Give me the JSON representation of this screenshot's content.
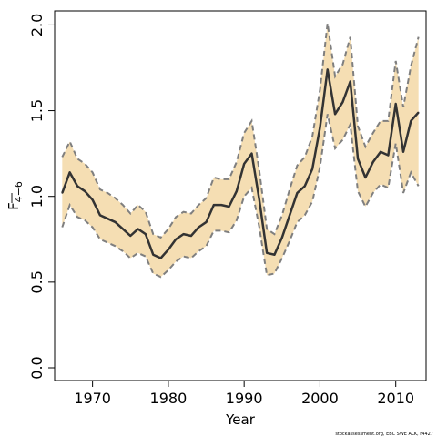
{
  "chart_data": {
    "type": "line",
    "xlabel": "Year",
    "ylabel": "F",
    "ylabel_subscript": "4−6",
    "xlim": [
      1965,
      2014
    ],
    "ylim": [
      0,
      2.05
    ],
    "x_ticks": [
      1970,
      1980,
      1990,
      2000,
      2010
    ],
    "x_tick_labels": [
      "1970",
      "1980",
      "1990",
      "2000",
      "2010"
    ],
    "y_ticks": [
      0,
      0.5,
      1,
      1.5,
      2
    ],
    "y_tick_labels": [
      "0.0",
      "0.5",
      "1.0",
      "1.5",
      "2.0"
    ],
    "grid": false,
    "colors": {
      "band_fill": "#f5deb3",
      "band_edge": "#7f7f7f",
      "line": "#333333"
    },
    "x": [
      1966,
      1967,
      1968,
      1969,
      1970,
      1971,
      1972,
      1973,
      1974,
      1975,
      1976,
      1977,
      1978,
      1979,
      1980,
      1981,
      1982,
      1983,
      1984,
      1985,
      1986,
      1987,
      1988,
      1989,
      1990,
      1991,
      1992,
      1993,
      1994,
      1995,
      1996,
      1997,
      1998,
      1999,
      2000,
      2001,
      2002,
      2003,
      2004,
      2005,
      2006,
      2007,
      2008,
      2009,
      2010,
      2011,
      2012,
      2013
    ],
    "series": [
      {
        "values": [
          1.02,
          1.14,
          1.06,
          1.03,
          0.98,
          0.89,
          0.87,
          0.85,
          0.81,
          0.77,
          0.81,
          0.78,
          0.66,
          0.64,
          0.69,
          0.75,
          0.78,
          0.77,
          0.82,
          0.85,
          0.95,
          0.95,
          0.94,
          1.03,
          1.19,
          1.25,
          0.98,
          0.67,
          0.66,
          0.76,
          0.89,
          1.02,
          1.06,
          1.16,
          1.4,
          1.74,
          1.48,
          1.55,
          1.67,
          1.22,
          1.11,
          1.2,
          1.26,
          1.24,
          1.54,
          1.26,
          1.44,
          1.49
        ],
        "lower": [
          0.82,
          0.95,
          0.88,
          0.86,
          0.82,
          0.75,
          0.73,
          0.71,
          0.68,
          0.64,
          0.67,
          0.65,
          0.55,
          0.53,
          0.57,
          0.62,
          0.65,
          0.64,
          0.68,
          0.71,
          0.8,
          0.8,
          0.79,
          0.86,
          1.0,
          1.05,
          0.82,
          0.54,
          0.55,
          0.64,
          0.74,
          0.85,
          0.89,
          0.97,
          1.17,
          1.48,
          1.28,
          1.33,
          1.42,
          1.03,
          0.94,
          1.02,
          1.07,
          1.05,
          1.31,
          1.02,
          1.14,
          1.06
        ],
        "upper": [
          1.23,
          1.32,
          1.22,
          1.19,
          1.14,
          1.04,
          1.02,
          0.99,
          0.95,
          0.9,
          0.95,
          0.91,
          0.78,
          0.76,
          0.81,
          0.88,
          0.91,
          0.9,
          0.95,
          0.99,
          1.11,
          1.1,
          1.1,
          1.2,
          1.37,
          1.44,
          1.15,
          0.81,
          0.78,
          0.89,
          1.04,
          1.18,
          1.23,
          1.35,
          1.62,
          2.01,
          1.7,
          1.77,
          1.93,
          1.41,
          1.29,
          1.37,
          1.44,
          1.44,
          1.79,
          1.52,
          1.76,
          1.93
        ]
      }
    ]
  },
  "footer_text": "stockassessment.org, EBC SWE ALK, r4427"
}
